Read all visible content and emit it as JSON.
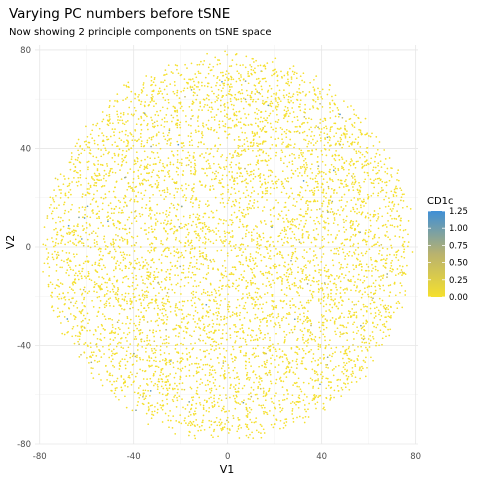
{
  "chart_data": {
    "type": "scatter",
    "title": "Varying PC numbers before tSNE",
    "subtitle": "Now showing 2 principle components on tSNE space",
    "xlabel": "V1",
    "ylabel": "V2",
    "xlim": [
      -82,
      81
    ],
    "ylim": [
      -80,
      82
    ],
    "x_ticks": [
      -80,
      -40,
      0,
      40,
      80
    ],
    "y_ticks": [
      -80,
      -40,
      0,
      40,
      80
    ],
    "x_tick_labels": [
      "-80",
      "-40",
      "0",
      "40",
      "80"
    ],
    "y_tick_labels": [
      "-80",
      "-40",
      "0",
      "40",
      "80"
    ],
    "grid": true,
    "legend_placement": "right",
    "color_variable": "CD1c",
    "color_scale": {
      "min": 0.0,
      "max": 1.25,
      "low_color": "#f5e02e",
      "mid_color": "#b9b26e",
      "high_color": "#3f8fd6",
      "ticks": [
        1.25,
        1.0,
        0.75,
        0.5,
        0.25,
        0.0
      ],
      "tick_labels": [
        "1.25",
        "1.00",
        "0.75",
        "0.50",
        "0.25",
        "0.00"
      ]
    },
    "point_cloud": {
      "shape": "disc",
      "center": [
        0,
        0
      ],
      "radius": 78,
      "n_points": 6000,
      "note_values": "most points CD1c 0.00; a few scattered points with higher CD1c"
    }
  }
}
